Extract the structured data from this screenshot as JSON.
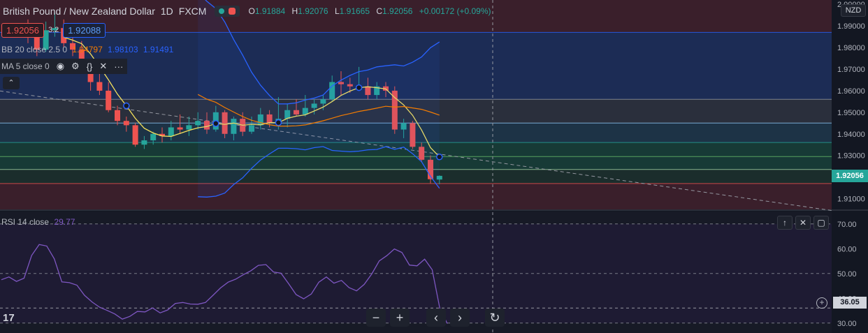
{
  "header": {
    "symbol": "British Pound / New Zealand Dollar",
    "interval": "1D",
    "exchange": "FXCM",
    "open_label": "O",
    "open": "1.91884",
    "high_label": "H",
    "high": "1.92076",
    "low_label": "L",
    "low": "1.91665",
    "close_label": "C",
    "close": "1.92056",
    "change": "+0.00172 (+0.09%)"
  },
  "trade": {
    "sell": "1.92056",
    "spread": "3.2",
    "buy": "1.92088"
  },
  "bb": {
    "label": "BB 20 close 2.5 0",
    "basis": "1.94797",
    "upper": "1.98103",
    "lower": "1.91491"
  },
  "ma": {
    "label": "MA 5 close 0"
  },
  "rsi": {
    "label": "RSI 14 close",
    "value": "29.77",
    "badge": "36.05"
  },
  "currency": "NZD",
  "last_price_badge": "1.92056",
  "price_axis": [
    "2.00000",
    "1.99000",
    "1.98000",
    "1.97000",
    "1.96000",
    "1.95000",
    "1.94000",
    "1.93000",
    "1.91000"
  ],
  "rsi_axis": [
    "70.00",
    "60.00",
    "50.00",
    "40.00",
    "30.00"
  ],
  "colors": {
    "up": "#26a69a",
    "down": "#ef5350",
    "ma": "#f5e15c",
    "bb_basis": "#f57c00",
    "bb_band": "#2962ff",
    "rsi": "#7e57c2"
  },
  "icons": [
    "eye-icon",
    "gear-icon",
    "braces-icon",
    "close-icon",
    "more-icon",
    "chevron-up-icon",
    "zoom-out-icon",
    "zoom-in-icon",
    "scroll-left-icon",
    "scroll-right-icon",
    "reset-icon"
  ],
  "chart_data": {
    "type": "candlestick",
    "ylim": [
      1.905,
      2.002
    ],
    "candles": [
      [
        1.988,
        1.993,
        1.982,
        1.986
      ],
      [
        1.986,
        1.99,
        1.976,
        1.979
      ],
      [
        1.979,
        1.992,
        1.978,
        1.988
      ],
      [
        1.988,
        1.996,
        1.985,
        1.989
      ],
      [
        1.989,
        1.993,
        1.98,
        1.982
      ],
      [
        1.982,
        1.985,
        1.976,
        1.979
      ],
      [
        1.979,
        1.983,
        1.97,
        1.971
      ],
      [
        1.971,
        1.974,
        1.96,
        1.964
      ],
      [
        1.964,
        1.968,
        1.958,
        1.96
      ],
      [
        1.96,
        1.964,
        1.95,
        1.951
      ],
      [
        1.951,
        1.953,
        1.944,
        1.946
      ],
      [
        1.946,
        1.948,
        1.941,
        1.944
      ],
      [
        1.944,
        1.945,
        1.934,
        1.935
      ],
      [
        1.935,
        1.939,
        1.933,
        1.937
      ],
      [
        1.937,
        1.941,
        1.935,
        1.94
      ],
      [
        1.94,
        1.943,
        1.936,
        1.939
      ],
      [
        1.939,
        1.946,
        1.937,
        1.943
      ],
      [
        1.943,
        1.949,
        1.94,
        1.942
      ],
      [
        1.942,
        1.948,
        1.939,
        1.944
      ],
      [
        1.944,
        1.95,
        1.942,
        1.946
      ],
      [
        1.946,
        1.95,
        1.94,
        1.942
      ],
      [
        1.942,
        1.953,
        1.941,
        1.95
      ],
      [
        1.95,
        1.951,
        1.938,
        1.94
      ],
      [
        1.94,
        1.948,
        1.937,
        1.947
      ],
      [
        1.947,
        1.95,
        1.939,
        1.941
      ],
      [
        1.941,
        1.948,
        1.94,
        1.944
      ],
      [
        1.944,
        1.952,
        1.942,
        1.949
      ],
      [
        1.949,
        1.951,
        1.943,
        1.945
      ],
      [
        1.945,
        1.957,
        1.942,
        1.947
      ],
      [
        1.947,
        1.954,
        1.943,
        1.951
      ],
      [
        1.951,
        1.956,
        1.948,
        1.949
      ],
      [
        1.949,
        1.958,
        1.948,
        1.952
      ],
      [
        1.952,
        1.956,
        1.949,
        1.954
      ],
      [
        1.954,
        1.958,
        1.951,
        1.956
      ],
      [
        1.956,
        1.967,
        1.955,
        1.964
      ],
      [
        1.964,
        1.969,
        1.958,
        1.963
      ],
      [
        1.963,
        1.966,
        1.959,
        1.962
      ],
      [
        1.962,
        1.971,
        1.96,
        1.962
      ],
      [
        1.962,
        1.966,
        1.956,
        1.958
      ],
      [
        1.958,
        1.964,
        1.956,
        1.962
      ],
      [
        1.962,
        1.964,
        1.957,
        1.96
      ],
      [
        1.96,
        1.962,
        1.94,
        1.942
      ],
      [
        1.942,
        1.947,
        1.938,
        1.945
      ],
      [
        1.945,
        1.946,
        1.933,
        1.934
      ],
      [
        1.934,
        1.936,
        1.927,
        1.928
      ],
      [
        1.928,
        1.93,
        1.917,
        1.919
      ],
      [
        1.91884,
        1.92076,
        1.91665,
        1.92056
      ]
    ],
    "series": [
      {
        "name": "MA 5 close 0",
        "values": []
      },
      {
        "name": "BB 20 close 2.5 0"
      },
      {
        "name": "RSI 14 close",
        "values": [
          47.5,
          48.6,
          46.8,
          48.1,
          57.3,
          61.7,
          61.1,
          55.9,
          46.6,
          46.3,
          45.3,
          41.2,
          38.5,
          36.4,
          35.1,
          33.7,
          31.6,
          32.7,
          34.7,
          34.5,
          36.1,
          34.1,
          35.3,
          37.9,
          38.3,
          37.7,
          37.6,
          38.3,
          41.2,
          44.2,
          46.5,
          47.7,
          49.5,
          51.1,
          53.3,
          53.6,
          50.6,
          50.1,
          45.9,
          41.5,
          39.8,
          41.7,
          46.5,
          48.6,
          46.1,
          47.2,
          44.3,
          43.0,
          45.6,
          49.8,
          55.1,
          57.2,
          59.9,
          58.5,
          53.4,
          53.1,
          55.8,
          51.5,
          36.1,
          29.8
        ]
      }
    ],
    "rsi_ylim": [
      26,
      75
    ]
  }
}
